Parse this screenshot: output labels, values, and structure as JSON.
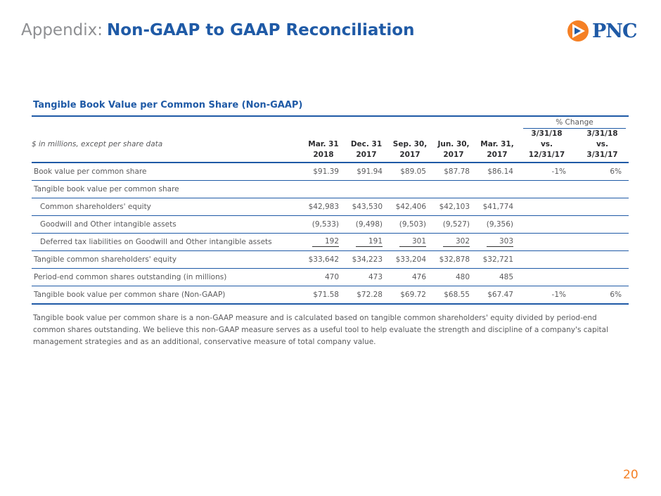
{
  "header": {
    "prefix": "Appendix:",
    "title": "Non-GAAP to GAAP Reconciliation"
  },
  "logo": {
    "text": "PNC",
    "brand_color": "#f58025",
    "primary_color": "#1f5aa6"
  },
  "section_title": "Tangible Book Value per Common Share (Non-GAAP)",
  "table": {
    "pct_change_header": "% Change",
    "label_header": "$ in millions, except per share data",
    "columns": [
      {
        "line1": "Mar. 31",
        "line2": "2018"
      },
      {
        "line1": "Dec. 31",
        "line2": "2017"
      },
      {
        "line1": "Sep. 30,",
        "line2": "2017"
      },
      {
        "line1": "Jun. 30,",
        "line2": "2017"
      },
      {
        "line1": "Mar. 31,",
        "line2": "2017"
      }
    ],
    "pct_columns": [
      {
        "line1": "3/31/18",
        "line2": "vs.",
        "line3": "12/31/17"
      },
      {
        "line1": "3/31/18",
        "line2": "vs.",
        "line3": "3/31/17"
      }
    ],
    "rows": [
      {
        "label": "Book value per common share",
        "values": [
          "$91.39",
          "$91.94",
          "$89.05",
          "$87.78",
          "$86.14"
        ],
        "pct": [
          "-1%",
          "6%"
        ]
      },
      {
        "label": "Tangible book value per common share",
        "values": [
          "",
          "",
          "",
          "",
          ""
        ],
        "pct": [
          "",
          ""
        ]
      },
      {
        "label": "Common shareholders' equity",
        "values": [
          "$42,983",
          "$43,530",
          "$42,406",
          "$42,103",
          "$41,774"
        ],
        "pct": [
          "",
          ""
        ]
      },
      {
        "label": "Goodwill and Other intangible assets",
        "values": [
          "(9,533)",
          "(9,498)",
          "(9,503)",
          "(9,527)",
          "(9,356)"
        ],
        "pct": [
          "",
          ""
        ]
      },
      {
        "label": "Deferred tax liabilities on Goodwill and Other intangible assets",
        "values": [
          "192",
          "191",
          "301",
          "302",
          "303"
        ],
        "pct": [
          "",
          ""
        ]
      },
      {
        "label": "Tangible common shareholders' equity",
        "values": [
          "$33,642",
          "$34,223",
          "$33,204",
          "$32,878",
          "$32,721"
        ],
        "pct": [
          "",
          ""
        ]
      },
      {
        "label": "Period-end common shares outstanding (in millions)",
        "values": [
          "470",
          "473",
          "476",
          "480",
          "485"
        ],
        "pct": [
          "",
          ""
        ]
      },
      {
        "label": "Tangible book value per common share (Non-GAAP)",
        "values": [
          "$71.58",
          "$72.28",
          "$69.72",
          "$68.55",
          "$67.47"
        ],
        "pct": [
          "-1%",
          "6%"
        ]
      }
    ]
  },
  "footnote": "Tangible book value per common share is a non-GAAP measure and is calculated based on tangible common shareholders' equity divided by period-end common shares outstanding. We believe this non-GAAP measure serves as a useful tool to help evaluate the strength and discipline of a company's capital management strategies and as an additional, conservative measure of total company value.",
  "page_number": "20"
}
